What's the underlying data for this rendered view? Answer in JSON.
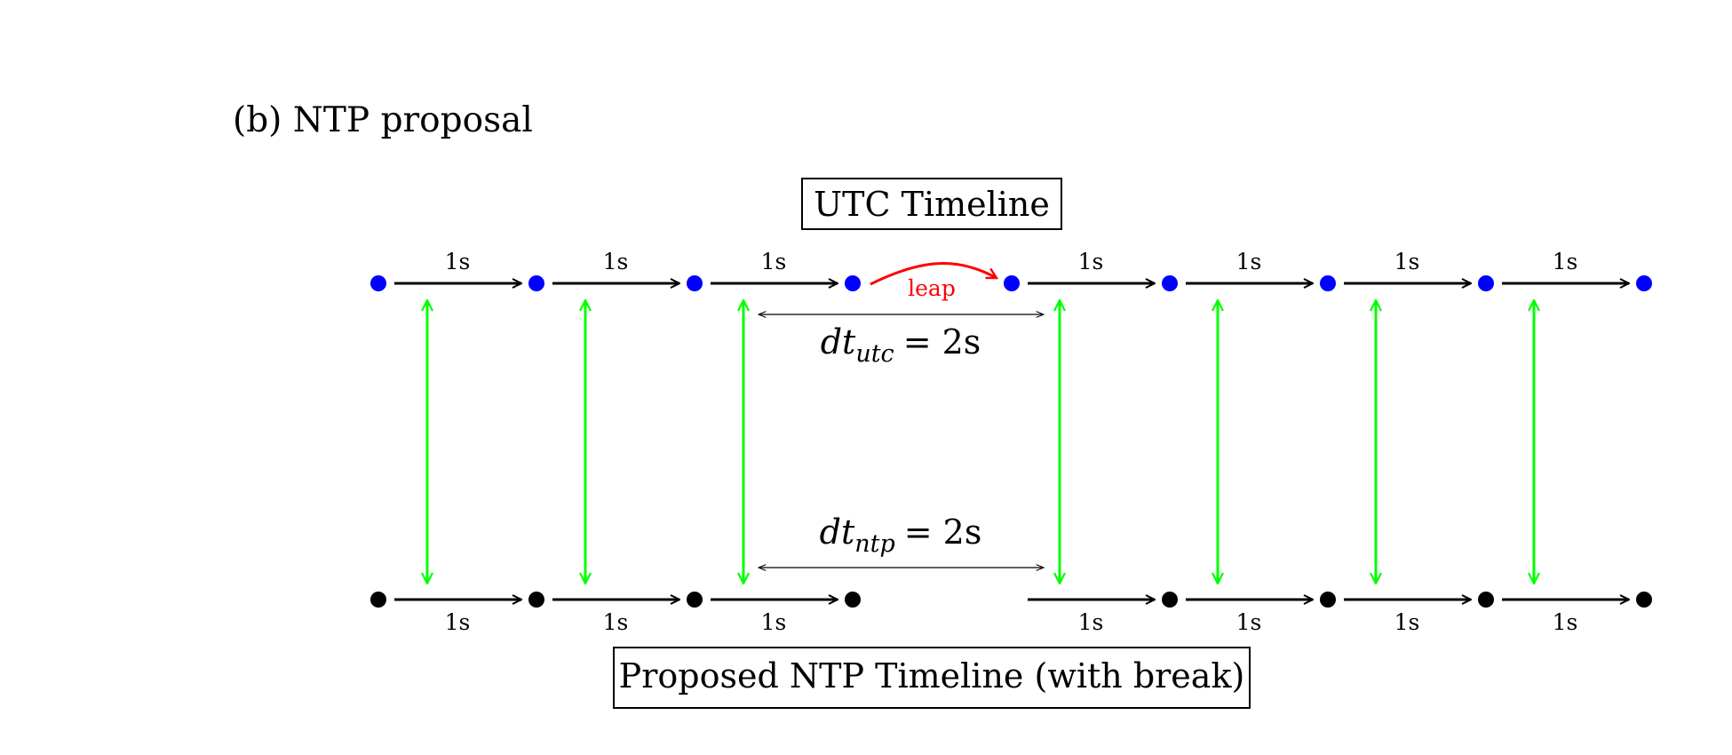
{
  "caption": "(b) NTP proposal",
  "utc_timeline": {
    "title": "UTC Timeline",
    "point_color": "#0000ff",
    "interval_label": "1s",
    "leap_label": "leap",
    "leap_color": "#ff0000"
  },
  "ntp_timeline": {
    "title": "Proposed NTP Timeline (with break)",
    "point_color": "#000000",
    "interval_label": "1s"
  },
  "mapping_color": "#00ff00",
  "dt_utc": {
    "symbol": "dt",
    "subscript": "utc",
    "equals": "= 2s"
  },
  "dt_ntp": {
    "symbol": "dt",
    "subscript": "ntp",
    "equals": "= 2s"
  }
}
